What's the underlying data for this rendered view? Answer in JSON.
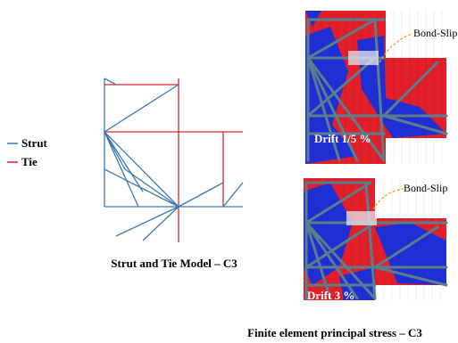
{
  "legend": {
    "strut": "Strut",
    "tie": "Tie"
  },
  "left_caption": "Strut and Tie Model – C3",
  "panels": [
    {
      "label": "Drift  1/5 %",
      "callout": "Bond-Slip"
    },
    {
      "label": "Drift  3 %",
      "callout": "Bond-Slip"
    }
  ],
  "caption": "Finite element principal stress – C3"
}
